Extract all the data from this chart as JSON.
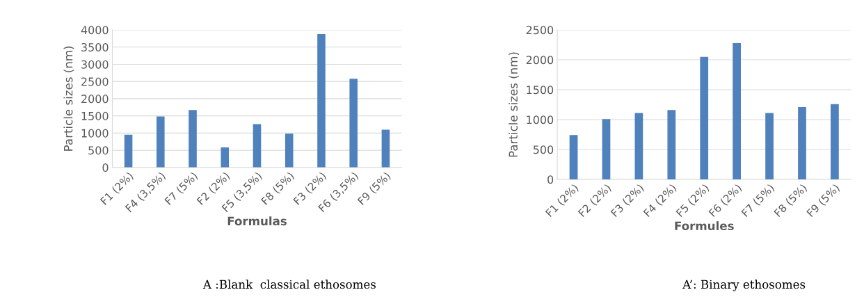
{
  "chart_data": [
    {
      "type": "bar",
      "xlabel": "Formulas",
      "ylabel": "Particle sizes (nm)",
      "categories": [
        "F1 (2%)",
        "F4 (3,5%)",
        "F7 (5%)",
        "F2 (2%)",
        "F5 (3,5%)",
        "F8 (5%)",
        "F3 (2%)",
        "F6 (3,5%)",
        "F9 (5%)"
      ],
      "series": [
        {
          "color": "#4f81bd",
          "values": [
            950,
            1480,
            1670,
            580,
            1260,
            980,
            3880,
            2580,
            1100
          ]
        }
      ],
      "ylim": [
        0,
        4000
      ],
      "yticks": [
        0,
        500,
        1000,
        1500,
        2000,
        2500,
        3000,
        3500,
        4000
      ],
      "grid": "y",
      "annotations": [
        "A :Blank  classical ethosomes"
      ]
    },
    {
      "type": "bar",
      "xlabel": "Formules",
      "ylabel": "Particle sizes (nm)",
      "categories": [
        "F1 (2%)",
        "F2 (2%)",
        "F3 (2%)",
        "F4 (2%)",
        "F5 (2%)",
        "F6 (2%)",
        "F7 (5%)",
        "F8 (5%)",
        "F9 (5%)"
      ],
      "series": [
        {
          "color": "#4f81bd",
          "values": [
            740,
            1010,
            1110,
            1160,
            2050,
            2280,
            1110,
            1210,
            1260
          ]
        }
      ],
      "ylim": [
        0,
        2500
      ],
      "yticks": [
        0,
        500,
        1000,
        1500,
        2000,
        2500
      ],
      "grid": "y",
      "annotations": [
        "A’: Binary ethosomes"
      ]
    }
  ]
}
